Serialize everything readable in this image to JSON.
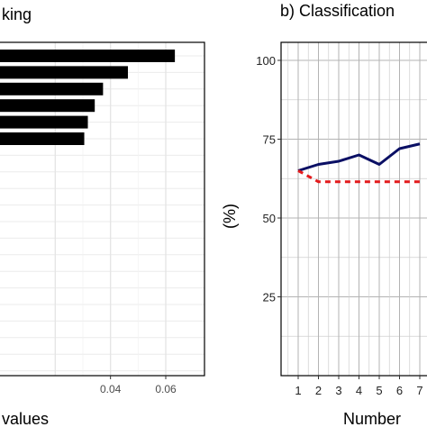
{
  "chart_data": [
    {
      "type": "bar",
      "orientation": "horizontal",
      "title": "king",
      "xlabel": "values",
      "xlim": [
        0,
        0.065
      ],
      "xticks": [
        0.04,
        0.06
      ],
      "xtick_labels": [
        "0.04",
        "0.06"
      ],
      "values": [
        0.0633,
        0.0463,
        0.0373,
        0.0343,
        0.0318,
        0.0305
      ],
      "bar_color": "#000000",
      "grid": true
    },
    {
      "type": "line",
      "title": "b) Classification",
      "xlabel": "Number",
      "ylabel": "(%)",
      "ylim": [
        0,
        100
      ],
      "yticks": [
        25,
        50,
        75,
        100
      ],
      "ytick_labels": [
        "25",
        "50",
        "75",
        "100"
      ],
      "x": [
        1,
        2,
        3,
        4,
        5,
        6,
        7
      ],
      "xtick_labels": [
        "1",
        "2",
        "3",
        "4",
        "5",
        "6",
        "7"
      ],
      "grid": true,
      "series": [
        {
          "values": [
            65,
            67,
            68,
            70,
            67,
            72,
            73.5
          ],
          "color": "#0a0f64",
          "style": "solid"
        },
        {
          "values": [
            65,
            61.5,
            61.5,
            61.5,
            61.5,
            61.5,
            61.5
          ],
          "color": "#e31a1c",
          "style": "dashed"
        }
      ]
    }
  ]
}
